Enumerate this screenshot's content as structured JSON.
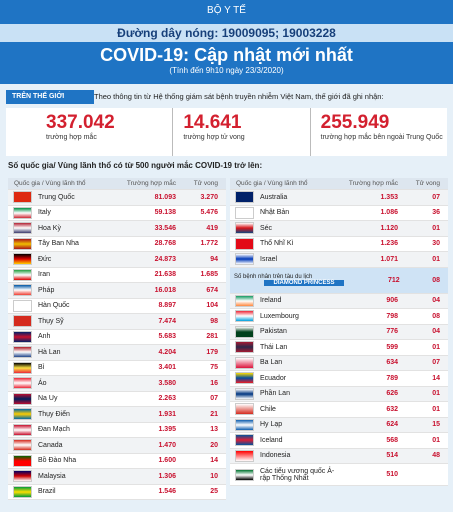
{
  "header": {
    "agency": "BỘ Y TẾ",
    "hotline": "Đường dây nóng: 19009095; 19003228",
    "title": "COVID-19: Cập nhật mới nhất",
    "subtitle": "(Tính đến 9h10 ngày 23/3/2020)"
  },
  "world": {
    "tag": "TRÊN THẾ GIỚI",
    "intro": "Theo thông tin từ Hệ thống giám sát bệnh truyền nhiễm Việt Nam, thế giới đã ghi nhận:",
    "stats": [
      {
        "value": "337.042",
        "label": "trường hợp mắc"
      },
      {
        "value": "14.641",
        "label": "trường hợp tử vong"
      },
      {
        "value": "255.949",
        "label": "trường hợp mắc bên ngoài Trung Quốc"
      }
    ]
  },
  "table_title": "Số quốc gia/ Vùng lãnh thổ có từ 500 người mắc COVID-19 trở lên:",
  "columns": [
    "Quốc gia / Vùng lãnh thổ",
    "Trường hợp mắc",
    "Tử vong"
  ],
  "table_left": {
    "rows": [
      {
        "country": "Trung Quốc",
        "cases": "81.093",
        "deaths": "3.270"
      },
      {
        "country": "Italy",
        "cases": "59.138",
        "deaths": "5.476"
      },
      {
        "country": "Hoa Kỳ",
        "cases": "33.546",
        "deaths": "419"
      },
      {
        "country": "Tây Ban Nha",
        "cases": "28.768",
        "deaths": "1.772"
      },
      {
        "country": "Đức",
        "cases": "24.873",
        "deaths": "94"
      },
      {
        "country": "Iran",
        "cases": "21.638",
        "deaths": "1.685"
      },
      {
        "country": "Pháp",
        "cases": "16.018",
        "deaths": "674"
      },
      {
        "country": "Hàn Quốc",
        "cases": "8.897",
        "deaths": "104"
      },
      {
        "country": "Thụy Sỹ",
        "cases": "7.474",
        "deaths": "98"
      },
      {
        "country": "Anh",
        "cases": "5.683",
        "deaths": "281"
      },
      {
        "country": "Hà Lan",
        "cases": "4.204",
        "deaths": "179"
      },
      {
        "country": "Bỉ",
        "cases": "3.401",
        "deaths": "75"
      },
      {
        "country": "Áo",
        "cases": "3.580",
        "deaths": "16"
      },
      {
        "country": "Na Uy",
        "cases": "2.263",
        "deaths": "07"
      },
      {
        "country": "Thụy Điển",
        "cases": "1.931",
        "deaths": "21"
      },
      {
        "country": "Đan Mạch",
        "cases": "1.395",
        "deaths": "13"
      },
      {
        "country": "Canada",
        "cases": "1.470",
        "deaths": "20"
      },
      {
        "country": "Bồ Đào Nha",
        "cases": "1.600",
        "deaths": "14"
      },
      {
        "country": "Malaysia",
        "cases": "1.306",
        "deaths": "10"
      },
      {
        "country": "Brazil",
        "cases": "1.546",
        "deaths": "25"
      }
    ]
  },
  "table_right": {
    "rows": [
      {
        "country": "Australia",
        "cases": "1.353",
        "deaths": "07"
      },
      {
        "country": "Nhật Bản",
        "cases": "1.086",
        "deaths": "36"
      },
      {
        "country": "Séc",
        "cases": "1.120",
        "deaths": "01"
      },
      {
        "country": "Thổ Nhĩ Kì",
        "cases": "1.236",
        "deaths": "30"
      },
      {
        "country": "Israel",
        "cases": "1.071",
        "deaths": "01"
      },
      {
        "country": "Số bệnh nhân trên tàu du lịch",
        "ship": "DIAMOND PRINCESS",
        "cases": "712",
        "deaths": "08"
      },
      {
        "country": "Ireland",
        "cases": "906",
        "deaths": "04"
      },
      {
        "country": "Luxembourg",
        "cases": "798",
        "deaths": "08"
      },
      {
        "country": "Pakistan",
        "cases": "776",
        "deaths": "04"
      },
      {
        "country": "Thái Lan",
        "cases": "599",
        "deaths": "01"
      },
      {
        "country": "Ba Lan",
        "cases": "634",
        "deaths": "07"
      },
      {
        "country": "Ecuador",
        "cases": "789",
        "deaths": "14"
      },
      {
        "country": "Phần Lan",
        "cases": "626",
        "deaths": "01"
      },
      {
        "country": "Chile",
        "cases": "632",
        "deaths": "01"
      },
      {
        "country": "Hy Lạp",
        "cases": "624",
        "deaths": "15"
      },
      {
        "country": "Iceland",
        "cases": "568",
        "deaths": "01"
      },
      {
        "country": "Indonesia",
        "cases": "514",
        "deaths": "48"
      },
      {
        "country": "Các tiểu vương quốc Ả-rập Thống Nhất",
        "cases": "510"
      }
    ]
  }
}
